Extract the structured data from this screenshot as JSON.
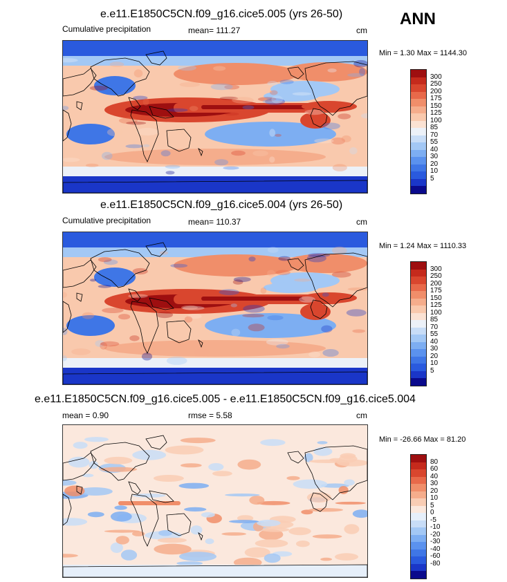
{
  "season": "ANN",
  "colors": {
    "abs": [
      "#0a0a8c",
      "#1a36c8",
      "#2a5ade",
      "#3f76e6",
      "#5b92ee",
      "#7daef2",
      "#a3c8f5",
      "#c8ddf7",
      "#ecf1f8",
      "#fbe2d3",
      "#f9c9ad",
      "#f5ad8c",
      "#f08e6a",
      "#e8694a",
      "#d9462e",
      "#c52a1c",
      "#9e0f10"
    ],
    "diff": [
      "#0a0a8c",
      "#1a36c8",
      "#2a5ade",
      "#3f76e6",
      "#5b92ee",
      "#7daef2",
      "#a3c8f5",
      "#c8ddf7",
      "#e6effa",
      "#fbe8dd",
      "#f9cdb4",
      "#f5ad8c",
      "#f08e6a",
      "#e8694a",
      "#d9462e",
      "#c52a1c",
      "#9e0f10"
    ]
  },
  "panels": [
    {
      "title": "e.e11.E1850C5CN.f09_g16.cice5.005 (yrs 26-50)",
      "left_label": "Cumulative precipitation",
      "stat": "mean= 111.27",
      "units": "cm",
      "minmax": "Min =   1.30 Max = 1144.30",
      "ticks": [
        "300",
        "250",
        "200",
        "175",
        "150",
        "125",
        "100",
        "85",
        "70",
        "55",
        "40",
        "30",
        "20",
        "10",
        "5"
      ],
      "kind": "abs"
    },
    {
      "title": "e.e11.E1850C5CN.f09_g16.cice5.004 (yrs 26-50)",
      "left_label": "Cumulative precipitation",
      "stat": "mean= 110.37",
      "units": "cm",
      "minmax": "Min =   1.24 Max = 1110.33",
      "ticks": [
        "300",
        "250",
        "200",
        "175",
        "150",
        "125",
        "100",
        "85",
        "70",
        "55",
        "40",
        "30",
        "20",
        "10",
        "5"
      ],
      "kind": "abs"
    },
    {
      "title": "e.e11.E1850C5CN.f09_g16.cice5.005 - e.e11.E1850C5CN.f09_g16.cice5.004",
      "left_label": "mean =   0.90",
      "stat": "rmse =   5.58",
      "units": "cm",
      "minmax": "Min = -26.66 Max =  81.20",
      "ticks": [
        "80",
        "60",
        "40",
        "30",
        "20",
        "10",
        "5",
        "0",
        "-5",
        "-10",
        "-20",
        "-30",
        "-40",
        "-60",
        "-80"
      ],
      "kind": "diff"
    }
  ],
  "chart_data": [
    {
      "type": "heatmap",
      "title": "e.e11.E1850C5CN.f09_g16.cice5.005 (yrs 26-50)",
      "variable": "Cumulative precipitation",
      "units": "cm",
      "mean": 111.27,
      "min": 1.3,
      "max": 1144.3,
      "contour_levels": [
        5,
        10,
        20,
        30,
        40,
        55,
        70,
        85,
        100,
        125,
        150,
        175,
        200,
        250,
        300
      ]
    },
    {
      "type": "heatmap",
      "title": "e.e11.E1850C5CN.f09_g16.cice5.004 (yrs 26-50)",
      "variable": "Cumulative precipitation",
      "units": "cm",
      "mean": 110.37,
      "min": 1.24,
      "max": 1110.33,
      "contour_levels": [
        5,
        10,
        20,
        30,
        40,
        55,
        70,
        85,
        100,
        125,
        150,
        175,
        200,
        250,
        300
      ]
    },
    {
      "type": "heatmap",
      "title": "e.e11.E1850C5CN.f09_g16.cice5.005 - e.e11.E1850C5CN.f09_g16.cice5.004",
      "units": "cm",
      "mean": 0.9,
      "rmse": 5.58,
      "min": -26.66,
      "max": 81.2,
      "contour_levels": [
        -80,
        -60,
        -40,
        -30,
        -20,
        -10,
        -5,
        0,
        5,
        10,
        20,
        30,
        40,
        60,
        80
      ]
    }
  ]
}
